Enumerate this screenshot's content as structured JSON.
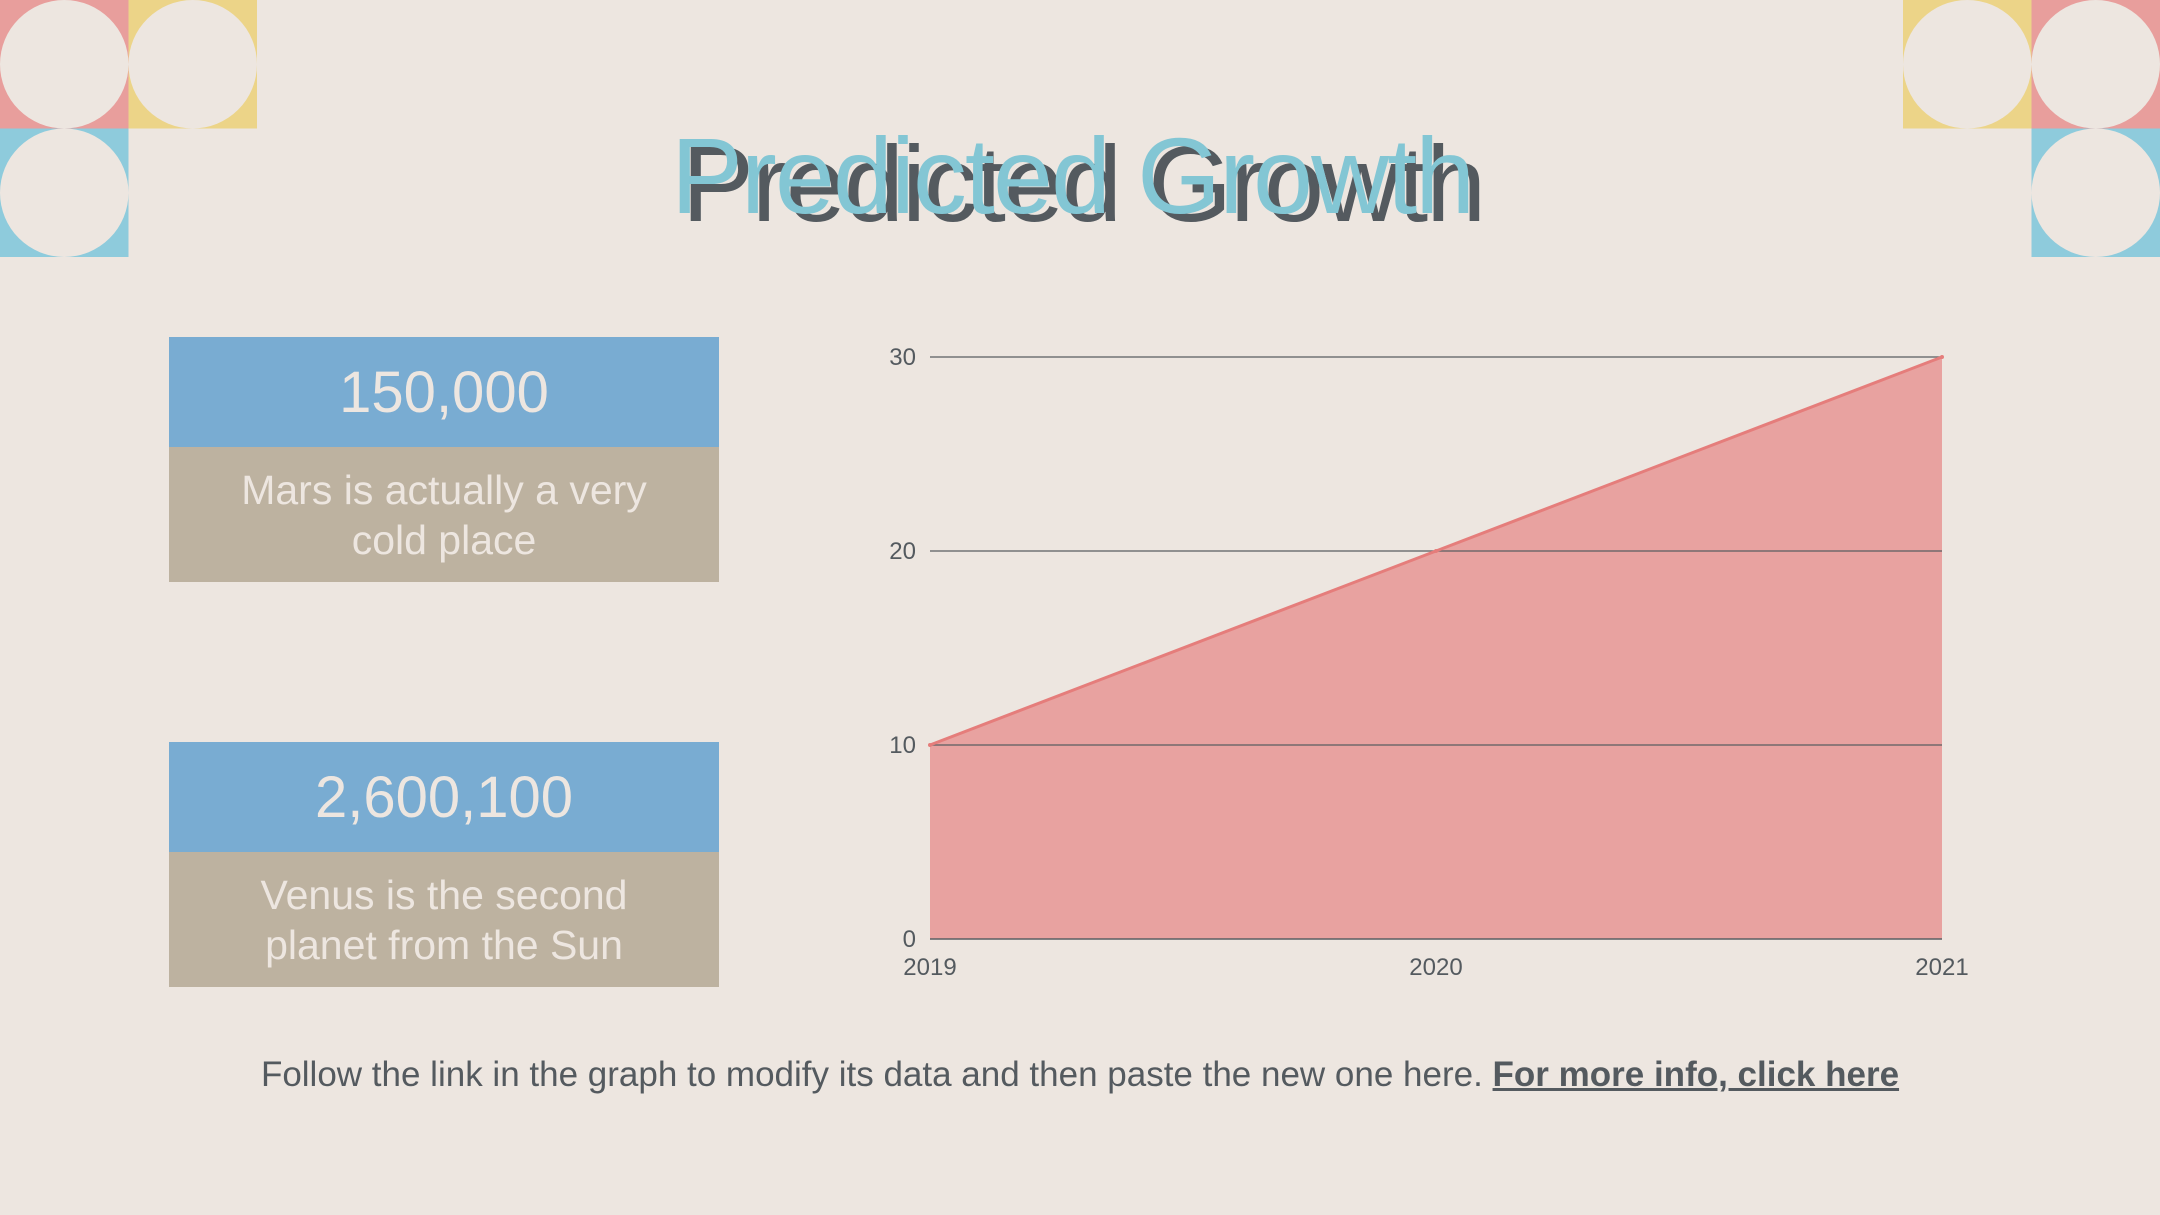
{
  "slide": {
    "title": "Predicted Growth",
    "stats": [
      {
        "value": "150,000",
        "description": "Mars is actually a very cold place"
      },
      {
        "value": "2,600,100",
        "description": "Venus is the second planet from the Sun"
      }
    ],
    "footer_text": "Follow the link in the graph to modify its data and then paste the new one here.",
    "footer_link": "For more info, click here"
  },
  "colors": {
    "background": "#ede6e0",
    "accent_red": "#e89e9c",
    "accent_yellow": "#ecd488",
    "accent_blue": "#8ecbdc",
    "box_blue": "#79acd2",
    "box_tan": "#bdb2a0",
    "text_dark": "#545a5f"
  },
  "chart_data": {
    "type": "area",
    "x": [
      "2019",
      "2020",
      "2021"
    ],
    "series": [
      {
        "values": [
          10,
          20,
          30
        ]
      }
    ],
    "y_ticks": [
      0,
      10,
      20,
      30
    ],
    "ylim": [
      0,
      30
    ],
    "grid": true,
    "fill_color": "#e89e9c",
    "line_color": "#e57d7b"
  }
}
